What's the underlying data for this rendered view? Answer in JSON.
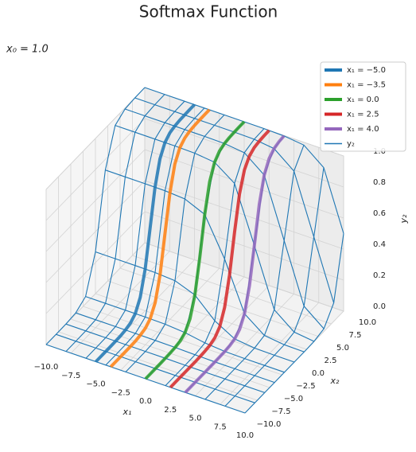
{
  "chart_data": {
    "type": "surface3d",
    "title": "Softmax Function",
    "annotation": "x₀ = 1.0",
    "xlabel": "x₁",
    "ylabel": "x₂",
    "zlabel": "y₂",
    "xlim": [
      -10,
      10
    ],
    "ylim": [
      -10,
      10
    ],
    "zlim": [
      0,
      1
    ],
    "xticks": [
      {
        "value": -10,
        "label": "−10.0"
      },
      {
        "value": -7.5,
        "label": "−7.5"
      },
      {
        "value": -5,
        "label": "−5.0"
      },
      {
        "value": -2.5,
        "label": "−2.5"
      },
      {
        "value": 0,
        "label": "0.0"
      },
      2.5,
      {
        "value": 5,
        "label": "5.0"
      },
      7.5,
      {
        "value": 10,
        "label": "10.0"
      }
    ],
    "yticks": [
      {
        "value": -10,
        "label": "−10.0"
      },
      {
        "value": -7.5,
        "label": "−7.5"
      },
      {
        "value": -5,
        "label": "−5.0"
      },
      {
        "value": -2.5,
        "label": "−2.5"
      },
      {
        "value": 0,
        "label": "0.0"
      },
      2.5,
      {
        "value": 5,
        "label": "5.0"
      },
      7.5,
      {
        "value": 10,
        "label": "10.0"
      }
    ],
    "zticks": [
      {
        "value": 0,
        "label": "0.0"
      },
      0.2,
      0.4,
      0.6,
      0.8,
      {
        "value": 1,
        "label": "1.0"
      }
    ],
    "grid": true,
    "legend": "upper right",
    "mesh": {
      "name": "y₂",
      "color": "#1f77b4",
      "x1": [
        -10,
        -8,
        -6,
        -4,
        -2,
        0,
        2,
        4,
        6,
        8,
        10
      ],
      "x2": [
        -10,
        -8,
        -6,
        -4,
        -2,
        0,
        2,
        4,
        6,
        8,
        10
      ],
      "z": [
        [
          0,
          0,
          0.001,
          0.007,
          0.047,
          0.269,
          0.731,
          0.953,
          0.993,
          0.999,
          1
        ],
        [
          0,
          0,
          0.001,
          0.007,
          0.047,
          0.269,
          0.731,
          0.953,
          0.993,
          0.999,
          1
        ],
        [
          0,
          0,
          0.001,
          0.007,
          0.047,
          0.269,
          0.731,
          0.953,
          0.993,
          0.999,
          1
        ],
        [
          0,
          0,
          0.001,
          0.007,
          0.047,
          0.268,
          0.73,
          0.953,
          0.993,
          0.999,
          1
        ],
        [
          0,
          0,
          0.001,
          0.006,
          0.045,
          0.26,
          0.721,
          0.95,
          0.993,
          0.999,
          1
        ],
        [
          0,
          0,
          0.001,
          0.005,
          0.035,
          0.212,
          0.665,
          0.936,
          0.991,
          0.999,
          1
        ],
        [
          0,
          0,
          0,
          0.002,
          0.013,
          0.09,
          0.422,
          0.844,
          0.976,
          0.997,
          1
        ],
        [
          0,
          0,
          0,
          0,
          0.002,
          0.017,
          0.114,
          0.488,
          0.876,
          0.981,
          0.997
        ],
        [
          0,
          0,
          0,
          0,
          0,
          0.002,
          0.018,
          0.118,
          0.498,
          0.88,
          0.982
        ],
        [
          0,
          0,
          0,
          0,
          0,
          0,
          0.002,
          0.018,
          0.119,
          0.5,
          0.881
        ],
        [
          0,
          0,
          0,
          0,
          0,
          0,
          0,
          0.002,
          0.018,
          0.119,
          0.5
        ]
      ]
    },
    "curve_x2": [
      -10,
      -9,
      -8,
      -7,
      -6,
      -5,
      -4,
      -3,
      -2,
      -1,
      0,
      1,
      2,
      3,
      4,
      5,
      6,
      7,
      8,
      9,
      10
    ],
    "series": [
      {
        "name": "x₁ = −5.0",
        "x1": -5,
        "color": "#1f77b4",
        "values": [
          0,
          0,
          0,
          0,
          0.001,
          0.002,
          0.007,
          0.018,
          0.047,
          0.119,
          0.268,
          0.499,
          0.731,
          0.88,
          0.952,
          0.982,
          0.993,
          0.998,
          0.999,
          1,
          1
        ]
      },
      {
        "name": "x₁ = −3.5",
        "x1": -3.5,
        "color": "#ff7f0e",
        "values": [
          0,
          0,
          0,
          0,
          0.001,
          0.002,
          0.007,
          0.018,
          0.047,
          0.118,
          0.267,
          0.497,
          0.729,
          0.88,
          0.952,
          0.982,
          0.993,
          0.998,
          0.999,
          1,
          1
        ]
      },
      {
        "name": "x₁ = 0.0",
        "x1": 0,
        "color": "#2ca02c",
        "values": [
          0,
          0,
          0,
          0,
          0.001,
          0.002,
          0.005,
          0.013,
          0.035,
          0.09,
          0.212,
          0.422,
          0.665,
          0.844,
          0.936,
          0.976,
          0.991,
          0.997,
          0.999,
          1,
          1
        ]
      },
      {
        "name": "x₁ = 2.5",
        "x1": 2.5,
        "color": "#d62728",
        "values": [
          0,
          0,
          0,
          0,
          0,
          0,
          0.001,
          0.003,
          0.009,
          0.024,
          0.063,
          0.154,
          0.331,
          0.574,
          0.786,
          0.909,
          0.964,
          0.987,
          0.995,
          0.998,
          0.999
        ]
      },
      {
        "name": "x₁ = 4.0",
        "x1": 4,
        "color": "#9467bd",
        "values": [
          0,
          0,
          0,
          0,
          0,
          0,
          0,
          0.001,
          0.002,
          0.006,
          0.017,
          0.045,
          0.114,
          0.26,
          0.488,
          0.721,
          0.876,
          0.95,
          0.981,
          0.993,
          0.997
        ]
      }
    ]
  }
}
